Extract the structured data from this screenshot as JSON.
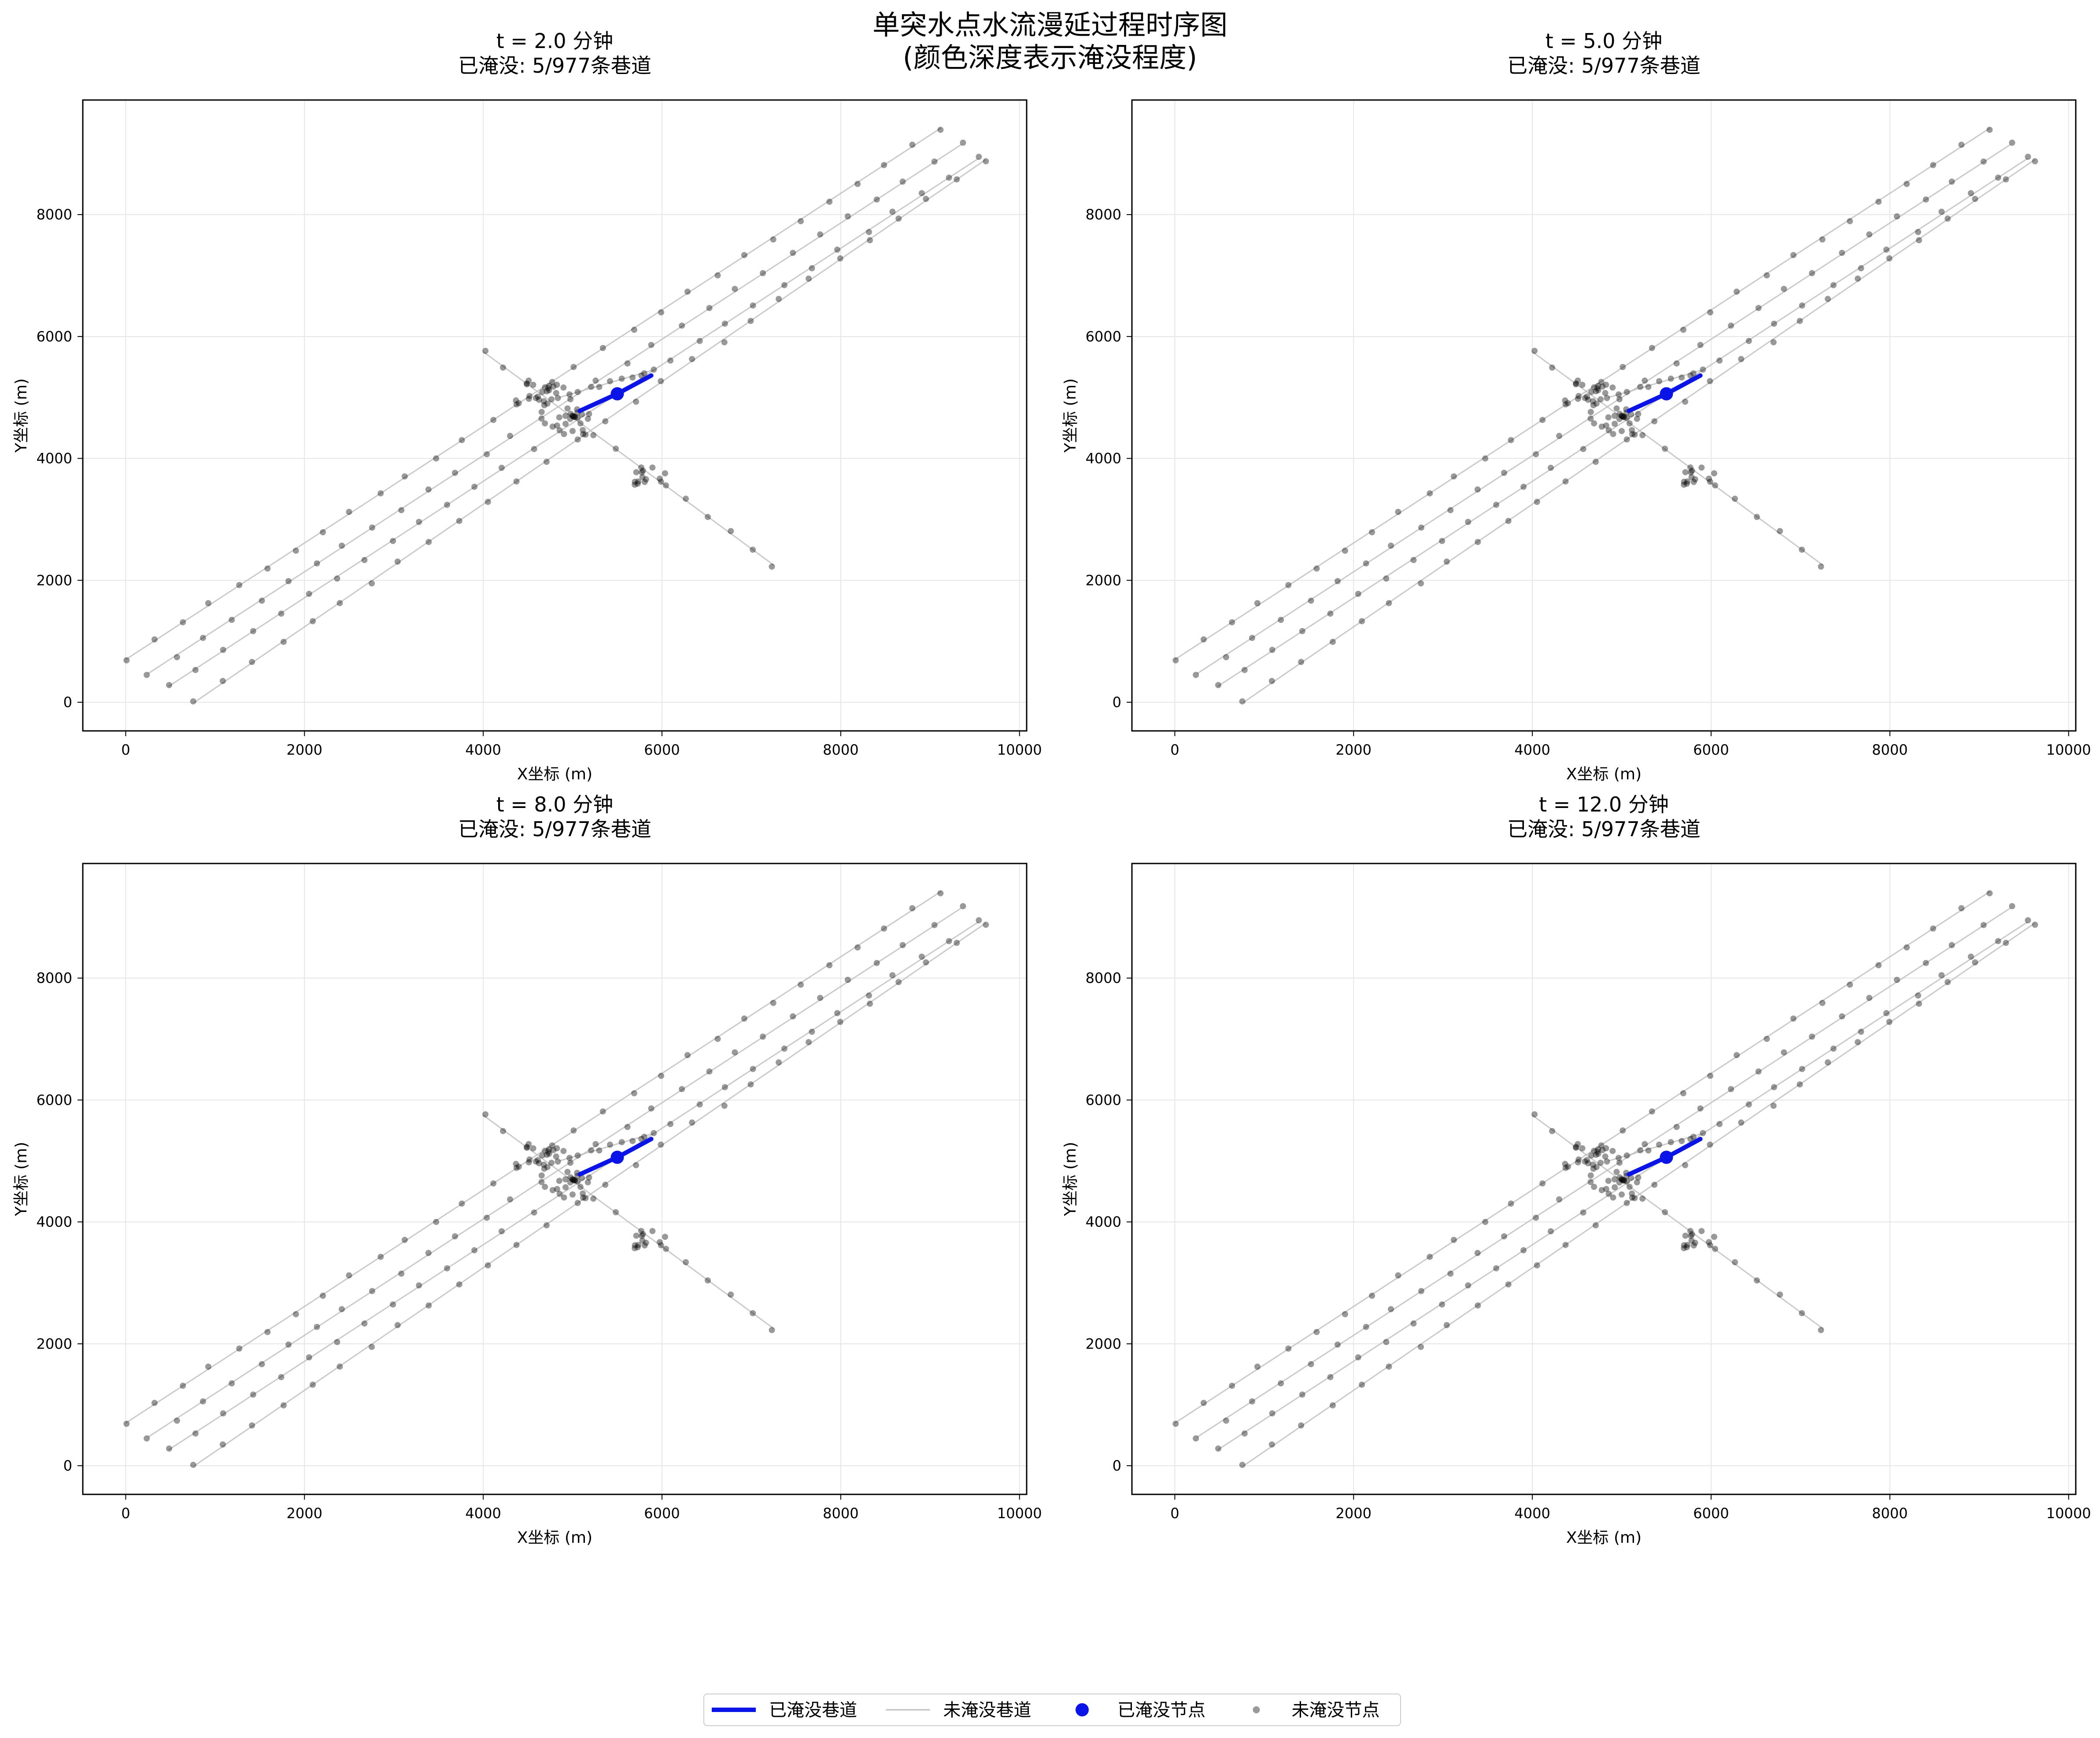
{
  "figure": {
    "title_line1": "单突水点水流漫延过程时序图",
    "title_line2": "(颜色深度表示淹没程度)"
  },
  "colors": {
    "flooded": "#0a14e6",
    "unflooded_line": "#bdbdbd",
    "unflooded_node": "#000000",
    "grid": "#e6e6e6",
    "axes": "#000000",
    "background": "#ffffff"
  },
  "legend": {
    "placement": "bottom-center",
    "items": [
      {
        "label": "已淹没巷道",
        "kind": "line-thick",
        "color": "#0a14e6"
      },
      {
        "label": "未淹没巷道",
        "kind": "line-thin",
        "color": "#bdbdbd"
      },
      {
        "label": "已淹没节点",
        "kind": "dot-large",
        "color": "#0a14e6"
      },
      {
        "label": "未淹没节点",
        "kind": "dot-small",
        "color": "#808080"
      }
    ]
  },
  "chart_data": [
    {
      "type": "scatter",
      "title": "t = 2.0 分钟",
      "subtitle": "已淹没: 5/977条巷道",
      "xlabel": "X坐标 (m)",
      "ylabel": "Y坐标 (m)",
      "xlim": [
        -480,
        10080
      ],
      "ylim": [
        -470,
        9880
      ],
      "xticks": [
        0,
        2000,
        4000,
        6000,
        8000,
        10000
      ],
      "yticks": [
        0,
        2000,
        4000,
        6000,
        8000
      ],
      "grid": true,
      "flooded_count": 5,
      "total_roadways": 977,
      "flooded_source_node": [
        5500,
        5060
      ],
      "flooded_path": [
        [
          5080,
          4780
        ],
        [
          5500,
          5060
        ],
        [
          5880,
          5360
        ]
      ]
    },
    {
      "type": "scatter",
      "title": "t = 5.0 分钟",
      "subtitle": "已淹没: 5/977条巷道",
      "xlabel": "X坐标 (m)",
      "ylabel": "Y坐标 (m)",
      "xlim": [
        -480,
        10080
      ],
      "ylim": [
        -470,
        9880
      ],
      "xticks": [
        0,
        2000,
        4000,
        6000,
        8000,
        10000
      ],
      "yticks": [
        0,
        2000,
        4000,
        6000,
        8000
      ],
      "grid": true,
      "flooded_count": 5,
      "total_roadways": 977,
      "flooded_source_node": [
        5500,
        5060
      ],
      "flooded_path": [
        [
          5080,
          4780
        ],
        [
          5500,
          5060
        ],
        [
          5880,
          5360
        ]
      ]
    },
    {
      "type": "scatter",
      "title": "t = 8.0 分钟",
      "subtitle": "已淹没: 5/977条巷道",
      "xlabel": "X坐标 (m)",
      "ylabel": "Y坐标 (m)",
      "xlim": [
        -480,
        10080
      ],
      "ylim": [
        -470,
        9880
      ],
      "xticks": [
        0,
        2000,
        4000,
        6000,
        8000,
        10000
      ],
      "yticks": [
        0,
        2000,
        4000,
        6000,
        8000
      ],
      "grid": true,
      "flooded_count": 5,
      "total_roadways": 977,
      "flooded_source_node": [
        5500,
        5060
      ],
      "flooded_path": [
        [
          5080,
          4780
        ],
        [
          5500,
          5060
        ],
        [
          5880,
          5360
        ]
      ]
    },
    {
      "type": "scatter",
      "title": "t = 12.0 分钟",
      "subtitle": "已淹没: 5/977条巷道",
      "xlabel": "X坐标 (m)",
      "ylabel": "Y坐标 (m)",
      "xlim": [
        -480,
        10080
      ],
      "ylim": [
        -470,
        9880
      ],
      "xticks": [
        0,
        2000,
        4000,
        6000,
        8000,
        10000
      ],
      "yticks": [
        0,
        2000,
        4000,
        6000,
        8000
      ],
      "grid": true,
      "flooded_count": 5,
      "total_roadways": 977,
      "flooded_source_node": [
        5500,
        5060
      ],
      "flooded_path": [
        [
          5080,
          4780
        ],
        [
          5500,
          5060
        ],
        [
          5880,
          5360
        ]
      ]
    }
  ],
  "network": {
    "roadways": [
      {
        "from": [
          0,
          700
        ],
        "to": [
          9120,
          9420
        ],
        "count": 30
      },
      {
        "from": [
          250,
          470
        ],
        "to": [
          9350,
          9150
        ],
        "count": 30
      },
      {
        "from": [
          480,
          260
        ],
        "to": [
          9540,
          8920
        ],
        "count": 30
      },
      {
        "from": [
          770,
          0
        ],
        "to": [
          9620,
          8900
        ],
        "count": 28
      },
      {
        "from": [
          4000,
          5750
        ],
        "to": [
          7250,
          2250
        ],
        "count": 14
      },
      {
        "from": [
          4850,
          5000
        ],
        "to": [
          5900,
          5450
        ],
        "count": 10
      }
    ],
    "clusters": [
      {
        "center": [
          4700,
          5100
        ],
        "count": 14
      },
      {
        "center": [
          4850,
          4700
        ],
        "count": 16
      },
      {
        "center": [
          5050,
          4550
        ],
        "count": 10
      },
      {
        "center": [
          5900,
          3700
        ],
        "count": 14
      },
      {
        "center": [
          4550,
          5050
        ],
        "count": 8
      }
    ]
  }
}
